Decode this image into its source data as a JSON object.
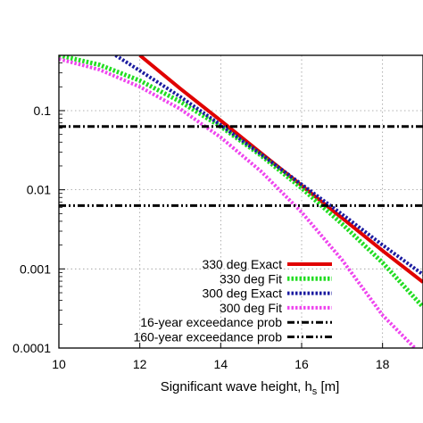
{
  "chart_data": {
    "type": "line",
    "xlabel": "Significant wave height, h",
    "xlabel_sub": "s",
    "xlabel_unit": " [m]",
    "xlim": [
      10,
      19
    ],
    "ylim": [
      0.0001,
      0.5
    ],
    "yscale": "log",
    "grid": true,
    "legend_position": "bottom-right",
    "x_ticks": [
      {
        "value": 10,
        "label": "10"
      },
      {
        "value": 12,
        "label": "12"
      },
      {
        "value": 14,
        "label": "14"
      },
      {
        "value": 16,
        "label": "16"
      },
      {
        "value": 18,
        "label": "18"
      }
    ],
    "y_ticks": [
      {
        "value": 0.1,
        "label": "0.1"
      },
      {
        "value": 0.01,
        "label": "0.01"
      },
      {
        "value": 0.001,
        "label": "0.001"
      },
      {
        "value": 0.0001,
        "label": "0.0001"
      }
    ],
    "series": [
      {
        "name": "330 deg Exact",
        "color": "#e00000",
        "style": "solid",
        "width": 4,
        "x": [
          12,
          13,
          14,
          15,
          16,
          17,
          18,
          19
        ],
        "y": [
          0.5,
          0.19,
          0.075,
          0.029,
          0.0113,
          0.0044,
          0.0017,
          0.00068
        ]
      },
      {
        "name": "330 deg Fit",
        "color": "#22dd22",
        "style": "dotted",
        "width": 5,
        "x": [
          10,
          11,
          12,
          13,
          14,
          15,
          16,
          17,
          18,
          19
        ],
        "y": [
          0.5,
          0.38,
          0.24,
          0.13,
          0.063,
          0.027,
          0.0105,
          0.0037,
          0.0012,
          0.00033
        ]
      },
      {
        "name": "300 deg Exact",
        "color": "#1a1aa0",
        "style": "dotted",
        "width": 4,
        "x": [
          11.4,
          12,
          13,
          14,
          15,
          16,
          17,
          18,
          19
        ],
        "y": [
          0.5,
          0.32,
          0.15,
          0.066,
          0.028,
          0.0117,
          0.0049,
          0.002,
          0.00085
        ]
      },
      {
        "name": "300 deg Fit",
        "color": "#ee44ee",
        "style": "dotted",
        "width": 4,
        "x": [
          10,
          11,
          12,
          13,
          14,
          15,
          16,
          17,
          18,
          18.8
        ],
        "y": [
          0.45,
          0.33,
          0.2,
          0.105,
          0.046,
          0.017,
          0.0052,
          0.0013,
          0.00026,
          0.0001
        ]
      },
      {
        "name": "16-year exceedance prob",
        "color": "#000000",
        "style": "dashdot",
        "width": 3,
        "x": [
          10,
          19
        ],
        "y": [
          0.063,
          0.063
        ]
      },
      {
        "name": "160-year exceedance prob",
        "color": "#000000",
        "style": "dashdotdot",
        "width": 3,
        "x": [
          10,
          19
        ],
        "y": [
          0.0063,
          0.0063
        ]
      }
    ]
  }
}
